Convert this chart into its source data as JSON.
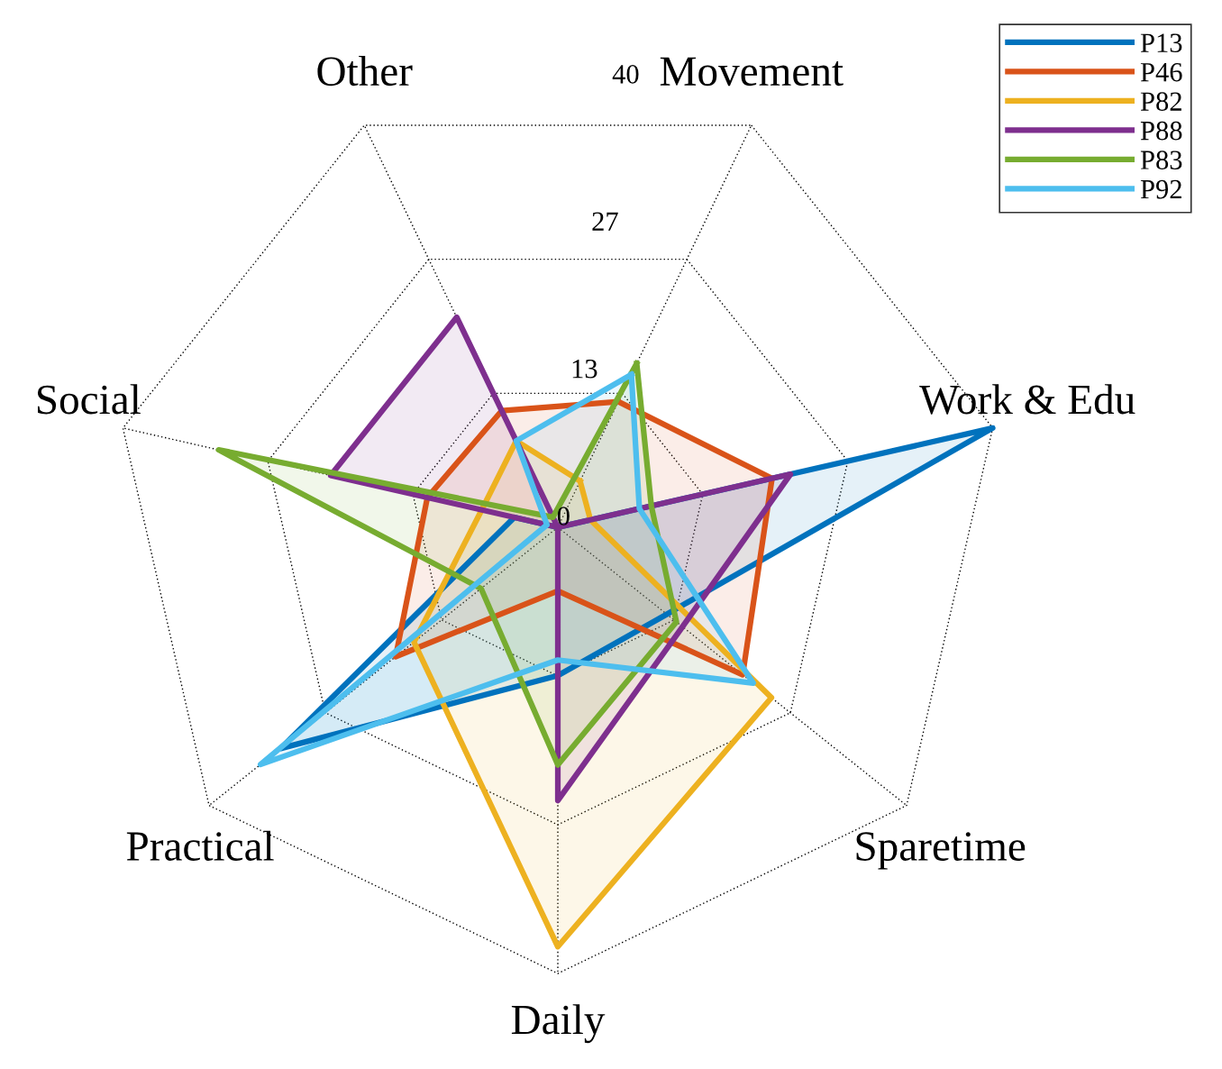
{
  "chart_data": {
    "type": "radar",
    "categories": [
      "Movement",
      "Work & Edu",
      "Sparetime",
      "Daily",
      "Practical",
      "Social",
      "Other"
    ],
    "ylim": [
      0,
      40
    ],
    "yticks": [
      0,
      {
        "value": 13.33,
        "label": "13"
      },
      {
        "value": 26.67,
        "label": "27"
      },
      40
    ],
    "grid": true,
    "legend": "top right",
    "line_style": "solid",
    "marker": "none",
    "series": [
      {
        "name": "P13",
        "color": "#0072bd",
        "values": [
          0,
          40,
          12.5,
          13.3,
          31.8,
          4,
          0
        ]
      },
      {
        "name": "P46",
        "color": "#d95319",
        "values": [
          12.5,
          19.7,
          21.2,
          5.7,
          18.6,
          12,
          11.6
        ]
      },
      {
        "name": "P82",
        "color": "#edb120",
        "values": [
          4.6,
          3,
          24.5,
          37.6,
          16.5,
          7,
          8.6
        ]
      },
      {
        "name": "P88",
        "color": "#7e2f8e",
        "values": [
          0,
          21.4,
          14.3,
          24.5,
          0,
          20.9,
          20.9
        ]
      },
      {
        "name": "P83",
        "color": "#77ac30",
        "values": [
          16.3,
          8.6,
          13.6,
          21.3,
          8.8,
          31.2,
          1
        ]
      },
      {
        "name": "P92",
        "color": "#4dbeee",
        "values": [
          15.2,
          7.5,
          22.4,
          11.9,
          34.1,
          1,
          8.6
        ]
      }
    ]
  }
}
